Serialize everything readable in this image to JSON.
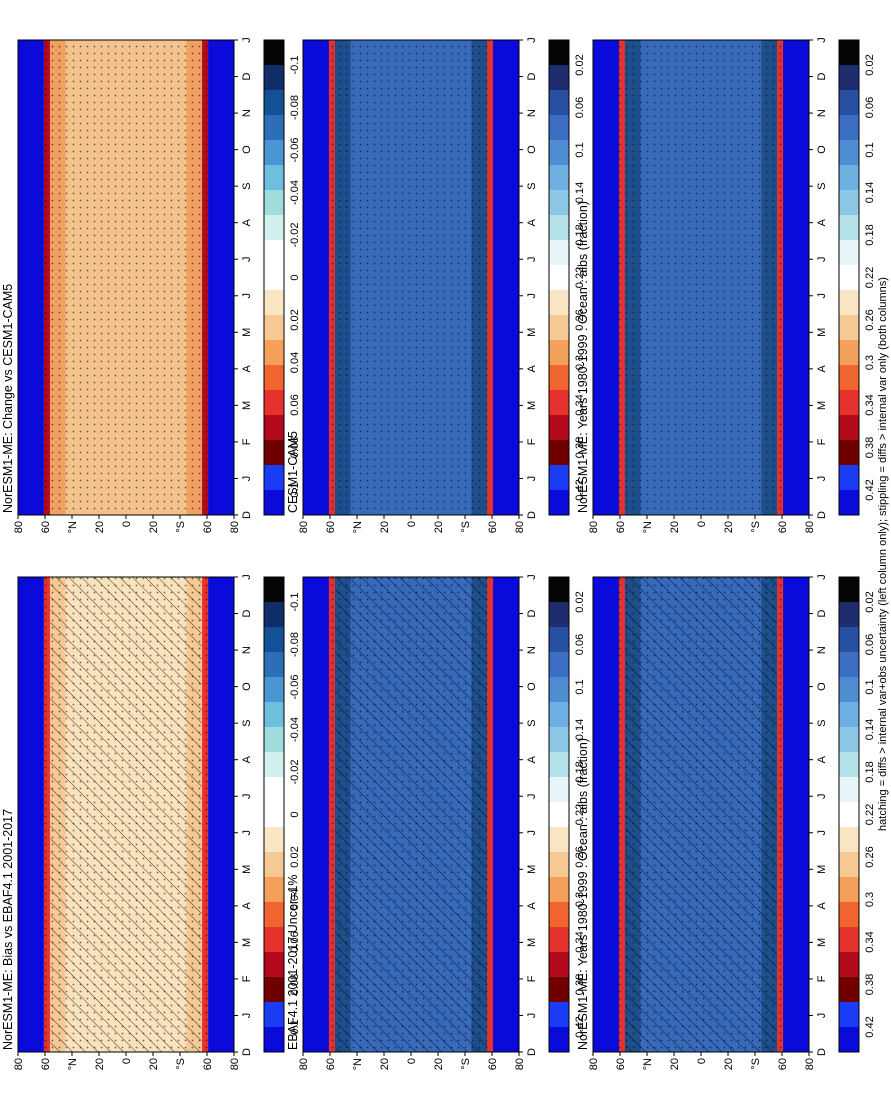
{
  "figure": {
    "footnote": "hatching = diffs > internal var+obs uncertainty (left column only); stippling = diffs > internal var only (both columns)"
  },
  "chart_data": [
    {
      "id": "bias",
      "type": "heatmap",
      "title": "NorESM1-ME: Bias vs EBAF4.1 2001-2017",
      "x_ticks": [
        "D",
        "J",
        "F",
        "M",
        "A",
        "M",
        "J",
        "J",
        "A",
        "S",
        "O",
        "N",
        "D",
        "J"
      ],
      "y_ticks": [
        "80",
        "60",
        "°N",
        "20",
        "0",
        "20",
        "°S",
        "60",
        "80"
      ],
      "ylim": [
        -90,
        90
      ],
      "colorbar_labels": [
        "0.1",
        "0.08",
        "0.06",
        "0.04",
        "0.02",
        "0",
        "-0.02",
        "-0.04",
        "-0.06",
        "-0.08",
        "-0.1"
      ],
      "colorbar_colors": [
        "#0a0adb",
        "#1a3cf5",
        "#700000",
        "#b40a1e",
        "#e6322d",
        "#f0642d",
        "#f5a05a",
        "#f5c894",
        "#fae6c3",
        "#ffffff",
        "#ffffff",
        "#d2f0ee",
        "#a0dcdc",
        "#6ebede",
        "#4b96d2",
        "#2d6eb9",
        "#145096",
        "#0f2d69",
        "#050505"
      ]
    },
    {
      "id": "obs",
      "type": "heatmap",
      "title": "EBAF4.1 2001-2017 Uncer=1%",
      "x_ticks": [
        "D",
        "J",
        "F",
        "M",
        "A",
        "M",
        "J",
        "J",
        "A",
        "S",
        "O",
        "N",
        "D",
        "J"
      ],
      "y_ticks": [
        "80",
        "60",
        "°N",
        "20",
        "0",
        "20",
        "°S",
        "60",
        "80"
      ],
      "ylim": [
        -90,
        90
      ],
      "colorbar_labels": [
        "0.42",
        "0.38",
        "0.34",
        "0.3",
        "0.26",
        "0.22",
        "0.18",
        "0.14",
        "0.1",
        "0.06",
        "0.02"
      ],
      "colorbar_colors": [
        "#0a0adb",
        "#1a3cf5",
        "#700000",
        "#b40a1e",
        "#e6322d",
        "#f0642d",
        "#f5a05a",
        "#f5c894",
        "#fae6c3",
        "#ffffff",
        "#e6f5f8",
        "#b4e1ea",
        "#8cc8e6",
        "#6eaee0",
        "#508cd2",
        "#3c6ec3",
        "#2850a0",
        "#1e2d6e",
        "#050505"
      ]
    },
    {
      "id": "model-left",
      "type": "heatmap",
      "title": "NorESM1-ME: Years 1980-1999 : Ocean : albs (fraction)",
      "x_ticks": [
        "D",
        "J",
        "F",
        "M",
        "A",
        "M",
        "J",
        "J",
        "A",
        "S",
        "O",
        "N",
        "D",
        "J"
      ],
      "y_ticks": [
        "80",
        "60",
        "°N",
        "20",
        "0",
        "20",
        "°S",
        "60",
        "80"
      ],
      "ylim": [
        -90,
        90
      ],
      "colorbar_labels": [
        "0.42",
        "0.38",
        "0.34",
        "0.3",
        "0.26",
        "0.22",
        "0.18",
        "0.14",
        "0.1",
        "0.06",
        "0.02"
      ],
      "colorbar_colors": [
        "#0a0adb",
        "#1a3cf5",
        "#700000",
        "#b40a1e",
        "#e6322d",
        "#f0642d",
        "#f5a05a",
        "#f5c894",
        "#fae6c3",
        "#ffffff",
        "#e6f5f8",
        "#b4e1ea",
        "#8cc8e6",
        "#6eaee0",
        "#508cd2",
        "#3c6ec3",
        "#2850a0",
        "#1e2d6e",
        "#050505"
      ]
    },
    {
      "id": "change",
      "type": "heatmap",
      "title": "NorESM1-ME: Change vs CESM1-CAM5",
      "x_ticks": [
        "D",
        "J",
        "F",
        "M",
        "A",
        "M",
        "J",
        "J",
        "A",
        "S",
        "O",
        "N",
        "D",
        "J"
      ],
      "y_ticks": [
        "80",
        "60",
        "°N",
        "20",
        "0",
        "20",
        "°S",
        "60",
        "80"
      ],
      "ylim": [
        -90,
        90
      ],
      "colorbar_labels": [
        "0.1",
        "0.08",
        "0.06",
        "0.04",
        "0.02",
        "0",
        "-0.02",
        "-0.04",
        "-0.06",
        "-0.08",
        "-0.1"
      ],
      "colorbar_colors": [
        "#0a0adb",
        "#1a3cf5",
        "#700000",
        "#b40a1e",
        "#e6322d",
        "#f0642d",
        "#f5a05a",
        "#f5c894",
        "#fae6c3",
        "#ffffff",
        "#ffffff",
        "#d2f0ee",
        "#a0dcdc",
        "#6ebede",
        "#4b96d2",
        "#2d6eb9",
        "#145096",
        "#0f2d69",
        "#050505"
      ]
    },
    {
      "id": "ref",
      "type": "heatmap",
      "title": "CESM1-CAM5",
      "x_ticks": [
        "D",
        "J",
        "F",
        "M",
        "A",
        "M",
        "J",
        "J",
        "A",
        "S",
        "O",
        "N",
        "D",
        "J"
      ],
      "y_ticks": [
        "80",
        "60",
        "°N",
        "20",
        "0",
        "20",
        "°S",
        "60",
        "80"
      ],
      "ylim": [
        -90,
        90
      ],
      "colorbar_labels": [
        "0.42",
        "0.38",
        "0.34",
        "0.3",
        "0.26",
        "0.22",
        "0.18",
        "0.14",
        "0.1",
        "0.06",
        "0.02"
      ],
      "colorbar_colors": [
        "#0a0adb",
        "#1a3cf5",
        "#700000",
        "#b40a1e",
        "#e6322d",
        "#f0642d",
        "#f5a05a",
        "#f5c894",
        "#fae6c3",
        "#ffffff",
        "#e6f5f8",
        "#b4e1ea",
        "#8cc8e6",
        "#6eaee0",
        "#508cd2",
        "#3c6ec3",
        "#2850a0",
        "#1e2d6e",
        "#050505"
      ]
    },
    {
      "id": "model-right",
      "type": "heatmap",
      "title": "NorESM1-ME: Years 1980-1999 : Ocean : albs (fraction)",
      "x_ticks": [
        "D",
        "J",
        "F",
        "M",
        "A",
        "M",
        "J",
        "J",
        "A",
        "S",
        "O",
        "N",
        "D",
        "J"
      ],
      "y_ticks": [
        "80",
        "60",
        "°N",
        "20",
        "0",
        "20",
        "°S",
        "60",
        "80"
      ],
      "ylim": [
        -90,
        90
      ],
      "colorbar_labels": [
        "0.42",
        "0.38",
        "0.34",
        "0.3",
        "0.26",
        "0.22",
        "0.18",
        "0.14",
        "0.1",
        "0.06",
        "0.02"
      ],
      "colorbar_colors": [
        "#0a0adb",
        "#1a3cf5",
        "#700000",
        "#b40a1e",
        "#e6322d",
        "#f0642d",
        "#f5a05a",
        "#f5c894",
        "#fae6c3",
        "#ffffff",
        "#e6f5f8",
        "#b4e1ea",
        "#8cc8e6",
        "#6eaee0",
        "#508cd2",
        "#3c6ec3",
        "#2850a0",
        "#1e2d6e",
        "#050505"
      ]
    }
  ]
}
